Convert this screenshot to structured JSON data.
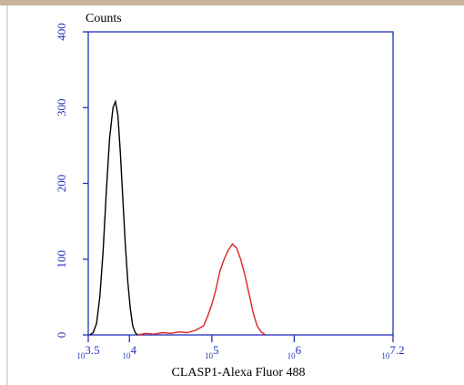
{
  "chart_data": {
    "type": "line",
    "title": "Counts",
    "x_label": "CLASP1-Alexa Fluor 488",
    "xscale": "log",
    "xlim": [
      3162.28,
      15848932
    ],
    "ylim": [
      0,
      400
    ],
    "xticks": [
      {
        "value": 3162.28,
        "label": "10^3.5"
      },
      {
        "value": 10000,
        "label": "10^4"
      },
      {
        "value": 100000,
        "label": "10^5"
      },
      {
        "value": 1000000,
        "label": "10^6"
      },
      {
        "value": 15848932,
        "label": "10^7.2"
      }
    ],
    "yticks": [
      0,
      100,
      200,
      300,
      400
    ],
    "axis_color": "#2233bb",
    "series": [
      {
        "color": "#000000",
        "x": [
          3311,
          3631,
          3981,
          4365,
          4786,
          5248,
          5754,
          6310,
          6761,
          7244,
          7762,
          8318,
          8913,
          9550,
          10233,
          10965,
          11749,
          12589
        ],
        "values": [
          0,
          3,
          15,
          50,
          110,
          190,
          260,
          300,
          308,
          290,
          240,
          180,
          120,
          70,
          35,
          12,
          3,
          0
        ]
      },
      {
        "color": "#dd2222",
        "x": [
          12589,
          15849,
          19953,
          25119,
          31623,
          39811,
          50119,
          63096,
          79433,
          89125,
          100000,
          112202,
          125893,
          141254,
          158489,
          177828,
          199526,
          223872,
          251189,
          281838,
          316228,
          354813,
          398107,
          446684
        ],
        "values": [
          0,
          2,
          1,
          3,
          2,
          4,
          3,
          6,
          12,
          25,
          40,
          60,
          85,
          100,
          112,
          120,
          115,
          100,
          80,
          55,
          30,
          12,
          4,
          0
        ]
      }
    ]
  }
}
